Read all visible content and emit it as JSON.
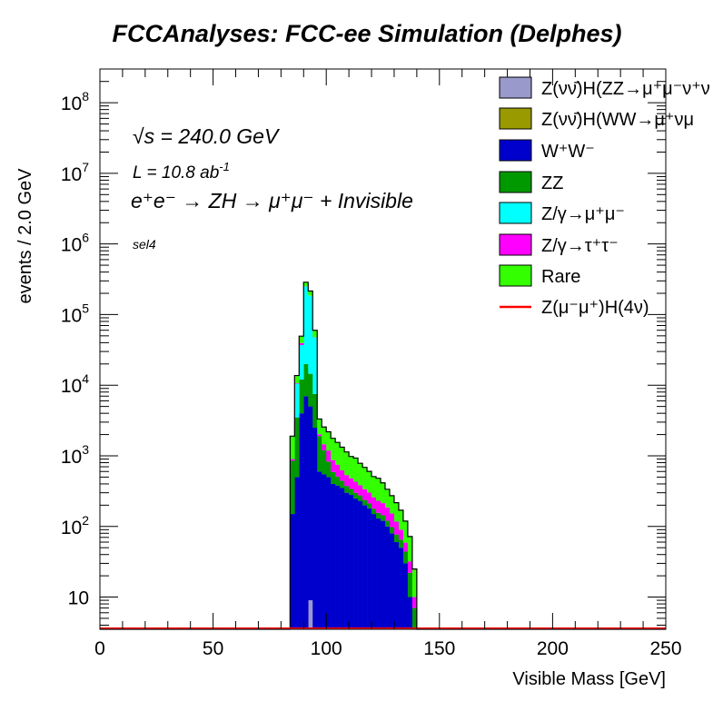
{
  "chart_data": {
    "type": "histogram-stacked",
    "title": "FCCAnalyses: FCC-ee Simulation (Delphes)",
    "xlabel": "Visible Mass [GeV]",
    "ylabel": "events / 2.0 GeV",
    "xlim": [
      0,
      250
    ],
    "ylim": [
      3.5,
      300000000
    ],
    "yscale": "log",
    "bin_width": 2.0,
    "x_ticks": [
      "0",
      "50",
      "100",
      "150",
      "200",
      "250"
    ],
    "y_ticks": [
      {
        "base": "10",
        "exp": ""
      },
      {
        "base": "10",
        "exp": "2"
      },
      {
        "base": "10",
        "exp": "3"
      },
      {
        "base": "10",
        "exp": "4"
      },
      {
        "base": "10",
        "exp": "5"
      },
      {
        "base": "10",
        "exp": "6"
      },
      {
        "base": "10",
        "exp": "7"
      },
      {
        "base": "10",
        "exp": "8"
      }
    ],
    "annotations": {
      "energy": "√s = 240.0 GeV",
      "lumi": "L = 10.8 ab",
      "lumi_exp": "-1",
      "process": "e⁺e⁻ → ZH → μ⁺μ⁻ + Invisible",
      "selection": "sel4"
    },
    "bin_centers": [
      85,
      87,
      89,
      91,
      93,
      95,
      97,
      99,
      101,
      103,
      105,
      107,
      109,
      111,
      113,
      115,
      117,
      119,
      121,
      123,
      125,
      127,
      129,
      131,
      133,
      135,
      137,
      139
    ],
    "series": [
      {
        "name": "Z(νν̄)H(ZZ→μ⁺μ⁻ν⁺ν)",
        "color": "#9999cc",
        "values": [
          0,
          0,
          0,
          0,
          9,
          0,
          0,
          0,
          0,
          0,
          0,
          0,
          0,
          0,
          0,
          0,
          0,
          0,
          0,
          0,
          0,
          0,
          0,
          0,
          0,
          0,
          0,
          0
        ]
      },
      {
        "name": "Z(νν̄)H(WW→μ⁺νμ⁻ν)",
        "color": "#999900",
        "values": [
          0,
          0,
          0,
          0,
          0,
          0,
          0,
          0,
          0,
          0,
          0,
          0,
          0,
          0,
          0,
          0,
          0,
          0,
          0,
          0,
          0,
          0,
          0,
          0,
          0,
          0,
          0,
          0
        ]
      },
      {
        "name": "W⁺W⁻",
        "color": "#0000cc",
        "values": [
          150,
          500,
          4000,
          7000,
          5000,
          2500,
          600,
          550,
          500,
          400,
          380,
          350,
          300,
          280,
          250,
          230,
          200,
          180,
          150,
          130,
          120,
          100,
          80,
          60,
          50,
          30,
          10,
          3
        ]
      },
      {
        "name": "ZZ",
        "color": "#009900",
        "values": [
          700,
          3000,
          8000,
          13000,
          9500,
          5000,
          1300,
          650,
          330,
          190,
          130,
          95,
          75,
          60,
          50,
          45,
          37,
          32,
          29,
          26,
          24,
          21,
          18,
          17,
          15,
          14,
          12,
          4
        ]
      },
      {
        "name": "Z/γ→μ⁺μ⁻",
        "color": "#00ffff",
        "values": [
          0,
          7000,
          25000,
          230000,
          170000,
          40000,
          0,
          0,
          0,
          0,
          0,
          0,
          0,
          0,
          0,
          0,
          0,
          0,
          0,
          0,
          0,
          0,
          0,
          0,
          0,
          0,
          0,
          0
        ]
      },
      {
        "name": "Z/γ→τ⁺τ⁻",
        "color": "#ff00ff",
        "values": [
          50,
          200,
          2500,
          2000,
          800,
          400,
          120,
          260,
          360,
          280,
          240,
          180,
          160,
          140,
          130,
          110,
          100,
          90,
          80,
          75,
          70,
          65,
          55,
          40,
          25,
          15,
          10,
          3
        ]
      },
      {
        "name": "Rare",
        "color": "#33ff00",
        "values": [
          1000,
          3000,
          10000,
          35000,
          30000,
          12000,
          1300,
          1100,
          1000,
          900,
          800,
          700,
          600,
          500,
          500,
          400,
          350,
          300,
          250,
          250,
          200,
          150,
          120,
          100,
          80,
          60,
          40,
          15
        ]
      }
    ],
    "signal": {
      "name": "Z(μ⁻μ⁺)H(4ν)",
      "color": "#ff0000",
      "values": [
        0,
        0,
        0,
        0,
        0,
        0,
        0,
        0,
        0,
        0,
        0,
        0,
        0,
        0,
        0,
        0,
        0,
        0,
        0,
        0,
        0,
        0,
        0,
        0,
        0,
        0,
        0,
        0
      ]
    },
    "legend_position": "top-right",
    "legend": [
      {
        "label": "Z(νν̄)H(ZZ→μ⁺μ⁻ν⁺ν",
        "color": "#9999cc",
        "kind": "box"
      },
      {
        "label": "Z(νν̄)H(WW→μ⁺νμ",
        "color": "#999900",
        "kind": "box"
      },
      {
        "label": "W⁺W⁻",
        "color": "#0000cc",
        "kind": "box"
      },
      {
        "label": "ZZ",
        "color": "#009900",
        "kind": "box"
      },
      {
        "label": "Z/γ→μ⁺μ⁻",
        "color": "#00ffff",
        "kind": "box"
      },
      {
        "label": "Z/γ→τ⁺τ⁻",
        "color": "#ff00ff",
        "kind": "box"
      },
      {
        "label": "Rare",
        "color": "#33ff00",
        "kind": "box"
      },
      {
        "label": "Z(μ⁻μ⁺)H(4ν)",
        "color": "#ff0000",
        "kind": "line"
      }
    ]
  }
}
